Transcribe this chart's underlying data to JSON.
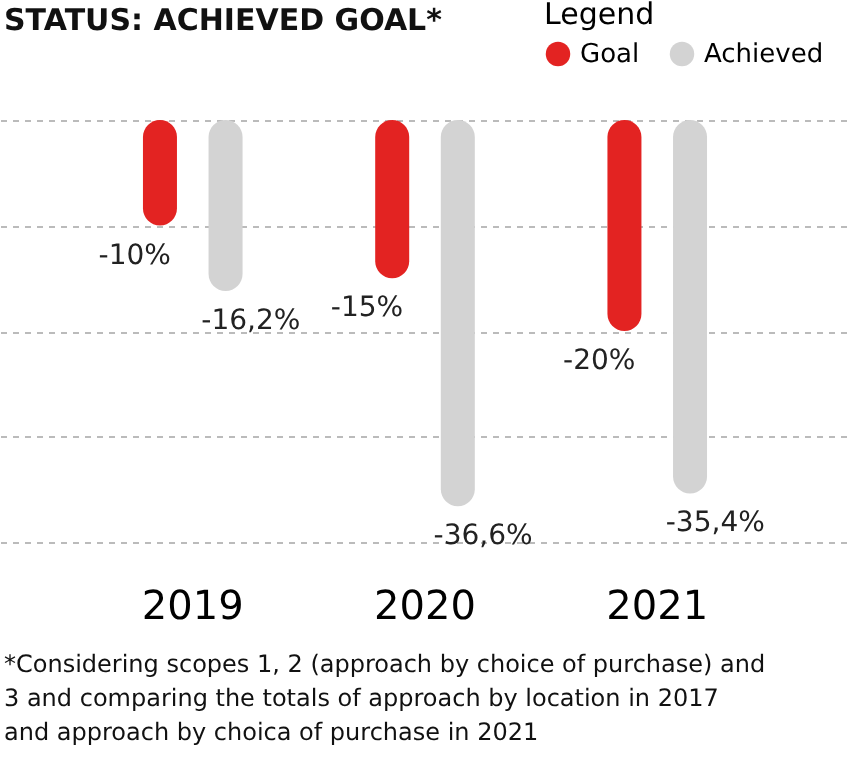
{
  "chart_data": {
    "type": "bar",
    "title": "STATUS: ACHIEVED GOAL*",
    "legend_title": "Legend",
    "legend": "top right",
    "categories": [
      "2019",
      "2020",
      "2021"
    ],
    "series": [
      {
        "name": "Goal",
        "color": "#e32322",
        "values": [
          -10,
          -15,
          -20
        ],
        "value_labels": [
          "-10%",
          "-15%",
          "-20%"
        ]
      },
      {
        "name": "Achieved",
        "color": "#d3d3d3",
        "values": [
          -16.2,
          -36.6,
          -35.4
        ],
        "value_labels": [
          "-16,2%",
          "-36,6%",
          "-35,4%"
        ]
      }
    ],
    "ylim": [
      -40,
      0
    ],
    "yticks": [
      {
        "value": 0,
        "label": null
      },
      {
        "value": -10,
        "label": null
      },
      {
        "value": -20,
        "label": null
      },
      {
        "value": -30,
        "label": null
      },
      {
        "value": -40,
        "label": null
      }
    ],
    "grid": "y",
    "tick_labels": "x",
    "annotations": [
      "*Considering scopes 1, 2 (approach by choice of purchase) and\n3 and comparing the totals of approach by location in 2017\nand approach by choica of purchase in 2021"
    ]
  }
}
